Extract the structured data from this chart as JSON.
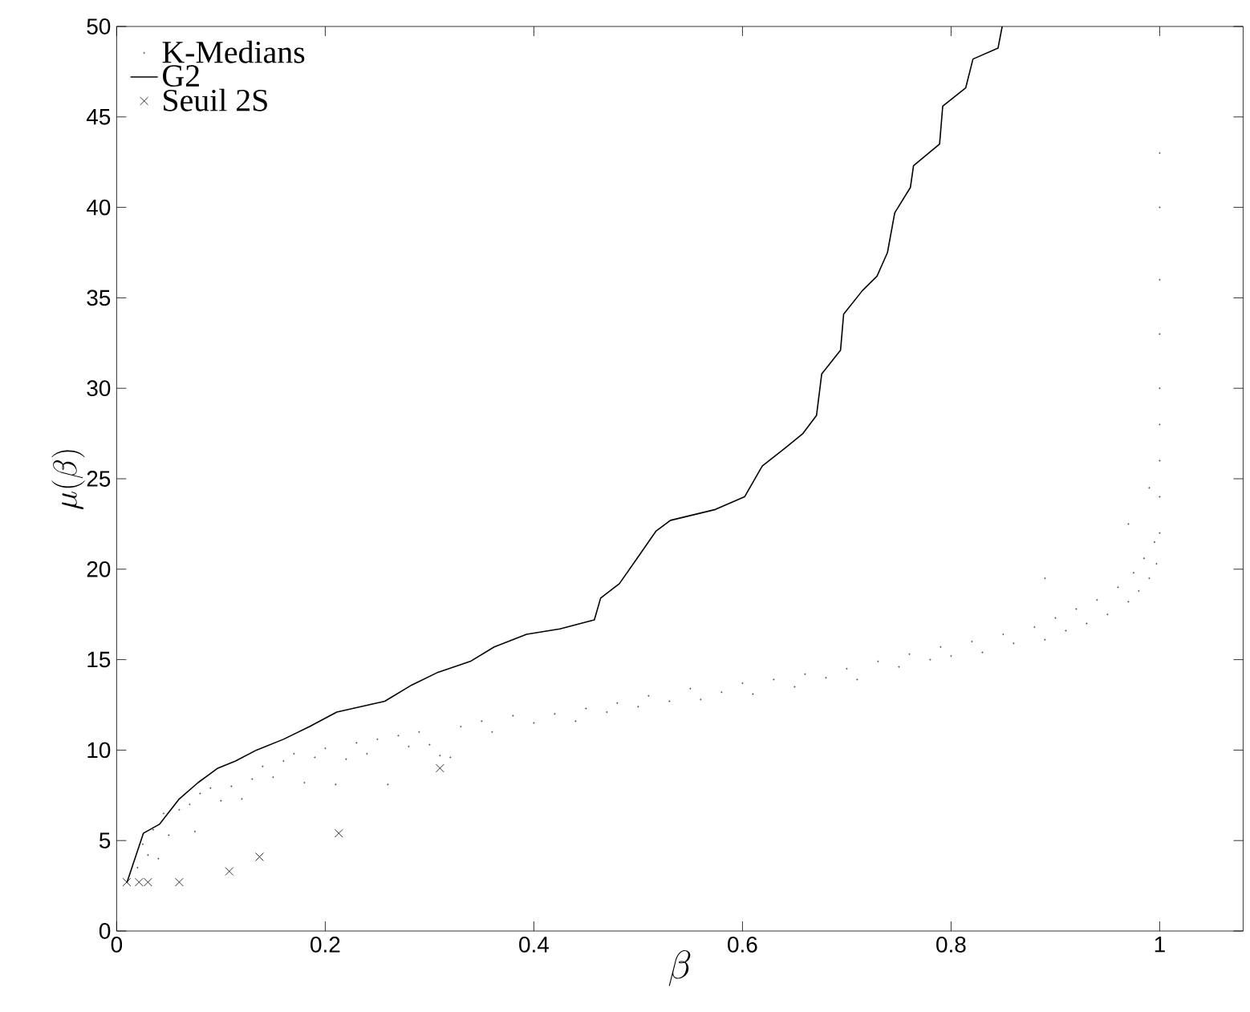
{
  "chart_data": {
    "type": "scatter",
    "xlabel": "\\beta",
    "ylabel": "\\mu(\\beta)",
    "xlim": [
      0,
      1.08
    ],
    "ylim": [
      0,
      50
    ],
    "xticks": [
      0,
      0.2,
      0.4,
      0.6,
      0.8,
      1
    ],
    "yticks": [
      0,
      5,
      10,
      15,
      20,
      25,
      30,
      35,
      40,
      45,
      50
    ],
    "grid": false,
    "legend": "top left",
    "series": [
      {
        "name": "K-Medians",
        "marker": "circle",
        "color": "#555555",
        "x": [
          0.01,
          0.02,
          0.025,
          0.03,
          0.035,
          0.04,
          0.045,
          0.05,
          0.06,
          0.07,
          0.075,
          0.08,
          0.09,
          0.1,
          0.11,
          0.12,
          0.13,
          0.14,
          0.15,
          0.16,
          0.17,
          0.18,
          0.19,
          0.2,
          0.21,
          0.22,
          0.23,
          0.24,
          0.25,
          0.26,
          0.27,
          0.28,
          0.29,
          0.3,
          0.31,
          0.32,
          0.33,
          0.35,
          0.36,
          0.38,
          0.4,
          0.42,
          0.44,
          0.45,
          0.47,
          0.48,
          0.5,
          0.51,
          0.53,
          0.55,
          0.56,
          0.58,
          0.6,
          0.61,
          0.63,
          0.65,
          0.66,
          0.68,
          0.7,
          0.71,
          0.73,
          0.75,
          0.76,
          0.78,
          0.79,
          0.8,
          0.82,
          0.83,
          0.85,
          0.86,
          0.88,
          0.89,
          0.9,
          0.91,
          0.92,
          0.93,
          0.94,
          0.95,
          0.96,
          0.97,
          0.975,
          0.98,
          0.985,
          0.99,
          0.995,
          0.997,
          1.0,
          1.0,
          1.0,
          1.0,
          1.0,
          1.0,
          1.0,
          1.0,
          1.0,
          0.89,
          0.97,
          0.99
        ],
        "values": [
          2.7,
          3.5,
          4.8,
          4.2,
          5.6,
          4.0,
          6.5,
          5.3,
          6.7,
          7.0,
          5.5,
          7.6,
          7.9,
          7.2,
          8.0,
          7.3,
          8.4,
          9.1,
          8.5,
          9.4,
          9.8,
          8.2,
          9.6,
          10.1,
          8.1,
          9.5,
          10.4,
          9.8,
          10.6,
          8.1,
          10.8,
          10.2,
          11.0,
          10.3,
          9.7,
          9.6,
          11.3,
          11.6,
          11.0,
          11.9,
          11.5,
          12.0,
          11.6,
          12.3,
          12.1,
          12.6,
          12.4,
          13.0,
          12.7,
          13.4,
          12.8,
          13.2,
          13.7,
          13.1,
          13.9,
          13.5,
          14.2,
          14.0,
          14.5,
          13.9,
          14.9,
          14.6,
          15.3,
          15.0,
          15.7,
          15.2,
          16.0,
          15.4,
          16.4,
          15.9,
          16.8,
          16.1,
          17.3,
          16.6,
          17.8,
          17.0,
          18.3,
          17.5,
          19.0,
          18.2,
          19.8,
          18.8,
          20.6,
          19.5,
          21.5,
          20.3,
          22,
          24,
          26,
          28,
          30,
          33,
          36,
          40,
          43,
          19.5,
          22.5,
          24.5
        ]
      },
      {
        "name": "G2",
        "type": "line",
        "marker": "none",
        "line_style": "solid",
        "color": "#000000",
        "x": [
          0.01,
          0.0256,
          0.041,
          0.06,
          0.078,
          0.097,
          0.114,
          0.134,
          0.16,
          0.185,
          0.211,
          0.257,
          0.283,
          0.308,
          0.339,
          0.362,
          0.393,
          0.425,
          0.458,
          0.464,
          0.482,
          0.499,
          0.517,
          0.531,
          0.574,
          0.602,
          0.619,
          0.641,
          0.658,
          0.671,
          0.676,
          0.694,
          0.697,
          0.715,
          0.729,
          0.739,
          0.746,
          0.761,
          0.764,
          0.789,
          0.792,
          0.814,
          0.821,
          0.845,
          0.849
        ],
        "values": [
          2.7,
          5.4,
          5.9,
          7.3,
          8.2,
          9.0,
          9.4,
          10.0,
          10.6,
          11.3,
          12.1,
          12.7,
          13.6,
          14.3,
          14.9,
          15.7,
          16.4,
          16.7,
          17.2,
          18.4,
          19.2,
          20.6,
          22.1,
          22.7,
          23.3,
          24.0,
          25.7,
          26.7,
          27.5,
          28.5,
          30.8,
          32.1,
          34.1,
          35.4,
          36.2,
          37.5,
          39.7,
          41.1,
          42.3,
          43.5,
          45.6,
          46.6,
          48.2,
          48.8,
          50
        ]
      },
      {
        "name": "Seuil 2S",
        "marker": "cross",
        "color": "#000000",
        "x": [
          0.0097,
          0.0215,
          0.03,
          0.06,
          0.108,
          0.137,
          0.213,
          0.31
        ],
        "values": [
          2.7,
          2.7,
          2.7,
          2.7,
          3.3,
          4.1,
          5.4,
          9.0
        ]
      }
    ]
  }
}
